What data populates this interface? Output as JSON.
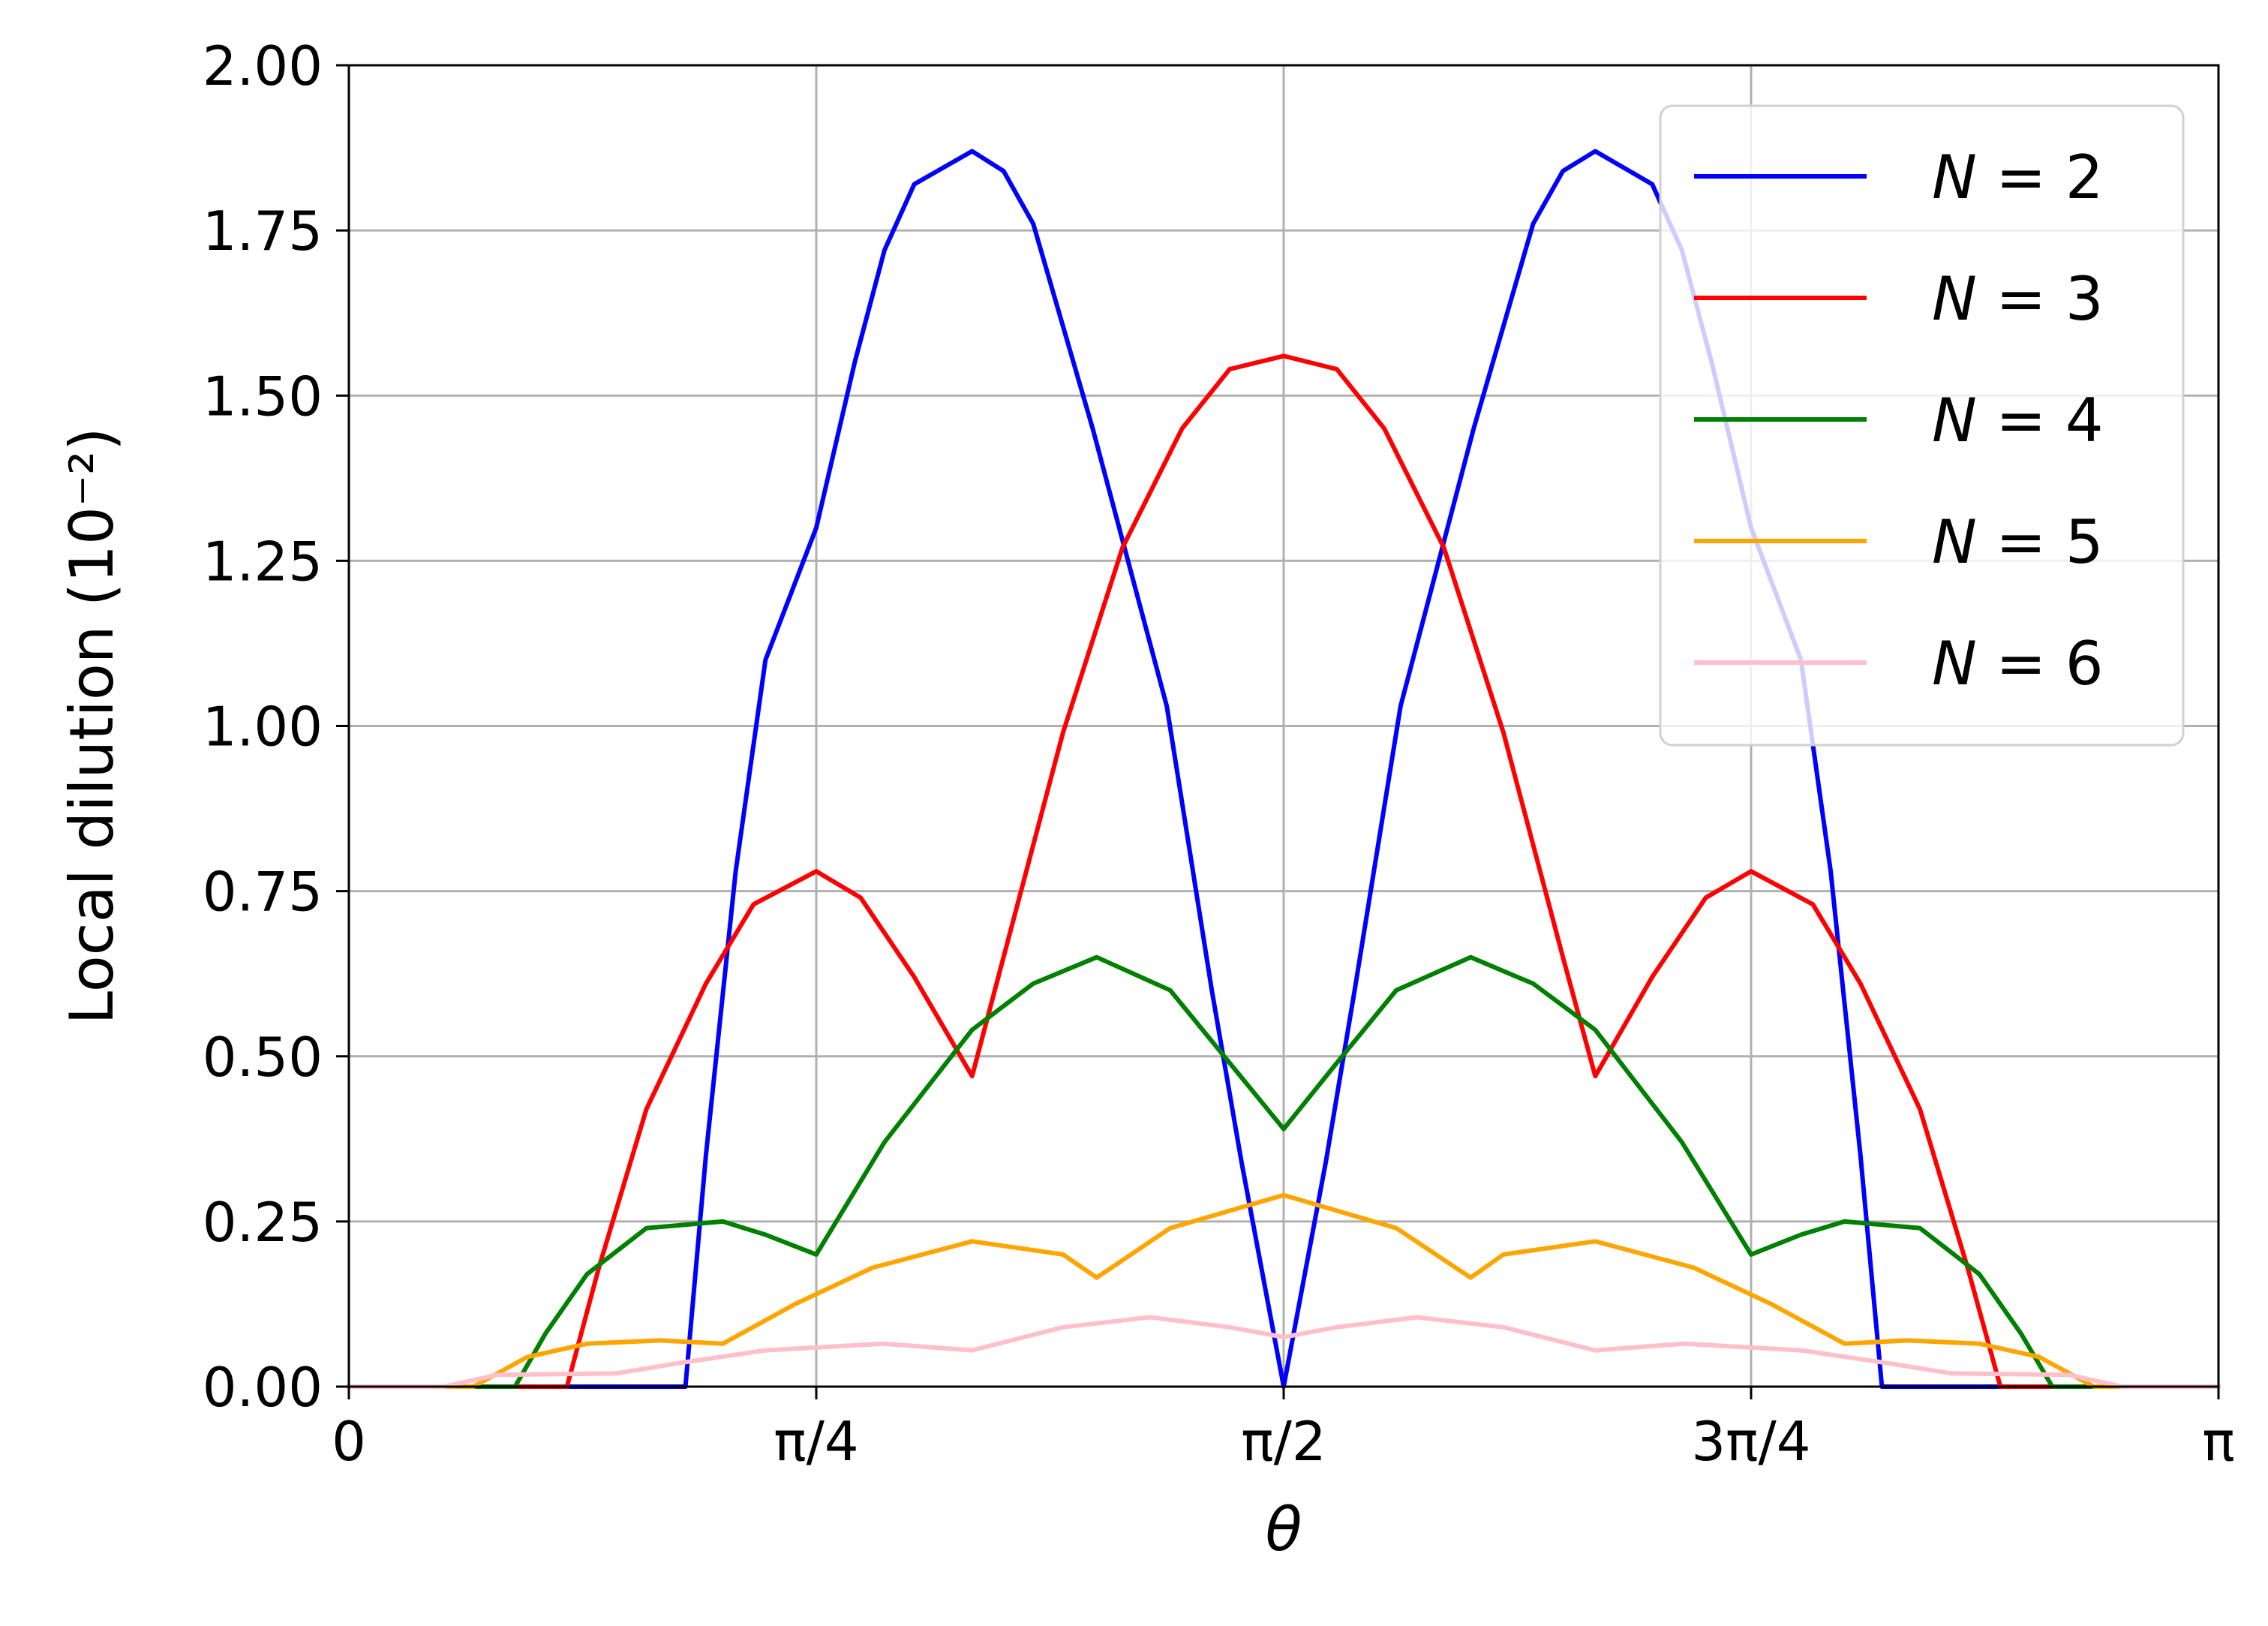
{
  "chart_data": {
    "type": "line",
    "xlabel": "θ",
    "ylabel": "Local dilution (10⁻²)",
    "xlim": [
      0,
      3.14159265
    ],
    "ylim": [
      0,
      2.0
    ],
    "grid": true,
    "legend_position": "top-right",
    "x_ticks": [
      {
        "value": 0,
        "label": "0"
      },
      {
        "value": 0.78539816,
        "label": "π/4"
      },
      {
        "value": 1.57079633,
        "label": "π/2"
      },
      {
        "value": 2.35619449,
        "label": "3π/4"
      },
      {
        "value": 3.14159265,
        "label": "π"
      }
    ],
    "y_ticks": [
      {
        "value": 0,
        "label": "0.00"
      },
      {
        "value": 0.25,
        "label": "0.25"
      },
      {
        "value": 0.5,
        "label": "0.50"
      },
      {
        "value": 0.75,
        "label": "0.75"
      },
      {
        "value": 1.0,
        "label": "1.00"
      },
      {
        "value": 1.25,
        "label": "1.25"
      },
      {
        "value": 1.5,
        "label": "1.50"
      },
      {
        "value": 1.75,
        "label": "1.75"
      },
      {
        "value": 2.0,
        "label": "2.00"
      }
    ],
    "series": [
      {
        "name": "N = 2",
        "label_var": "N",
        "label_value": "2",
        "color": "#0000ff",
        "points": [
          [
            0,
            0
          ],
          [
            0.5655,
            0
          ],
          [
            0.6,
            0.35
          ],
          [
            0.65,
            0.78
          ],
          [
            0.7,
            1.1
          ],
          [
            0.7854,
            1.3
          ],
          [
            0.85,
            1.55
          ],
          [
            0.9,
            1.72
          ],
          [
            0.95,
            1.82
          ],
          [
            1.0472,
            1.87
          ],
          [
            1.1,
            1.84
          ],
          [
            1.15,
            1.76
          ],
          [
            1.25,
            1.45
          ],
          [
            1.3744,
            1.03
          ],
          [
            1.45,
            0.6
          ],
          [
            1.5,
            0.34
          ],
          [
            1.5708,
            0
          ],
          [
            1.6416,
            0.34
          ],
          [
            1.69,
            0.6
          ],
          [
            1.7672,
            1.03
          ],
          [
            1.89,
            1.45
          ],
          [
            1.99,
            1.76
          ],
          [
            2.04,
            1.84
          ],
          [
            2.0944,
            1.87
          ],
          [
            2.19,
            1.82
          ],
          [
            2.24,
            1.72
          ],
          [
            2.29,
            1.55
          ],
          [
            2.3562,
            1.3
          ],
          [
            2.44,
            1.1
          ],
          [
            2.49,
            0.78
          ],
          [
            2.54,
            0.35
          ],
          [
            2.5761,
            0
          ],
          [
            3.1416,
            0
          ]
        ]
      },
      {
        "name": "N = 3",
        "label_var": "N",
        "label_value": "3",
        "color": "#ff0000",
        "points": [
          [
            0,
            0
          ],
          [
            0.3665,
            0
          ],
          [
            0.42,
            0.18
          ],
          [
            0.5,
            0.42
          ],
          [
            0.6,
            0.61
          ],
          [
            0.68,
            0.73
          ],
          [
            0.7854,
            0.78
          ],
          [
            0.86,
            0.74
          ],
          [
            0.95,
            0.62
          ],
          [
            1.0472,
            0.47
          ],
          [
            1.1,
            0.65
          ],
          [
            1.2,
            0.99
          ],
          [
            1.3,
            1.27
          ],
          [
            1.4,
            1.45
          ],
          [
            1.48,
            1.54
          ],
          [
            1.5708,
            1.56
          ],
          [
            1.66,
            1.54
          ],
          [
            1.74,
            1.45
          ],
          [
            1.84,
            1.27
          ],
          [
            1.94,
            0.99
          ],
          [
            2.04,
            0.65
          ],
          [
            2.0944,
            0.47
          ],
          [
            2.19,
            0.62
          ],
          [
            2.28,
            0.74
          ],
          [
            2.3562,
            0.78
          ],
          [
            2.46,
            0.73
          ],
          [
            2.54,
            0.61
          ],
          [
            2.64,
            0.42
          ],
          [
            2.72,
            0.18
          ],
          [
            2.7751,
            0
          ],
          [
            3.1416,
            0
          ]
        ]
      },
      {
        "name": "N = 4",
        "label_var": "N",
        "label_value": "4",
        "color": "#008000",
        "points": [
          [
            0,
            0
          ],
          [
            0.2793,
            0
          ],
          [
            0.33,
            0.08
          ],
          [
            0.4,
            0.17
          ],
          [
            0.5,
            0.24
          ],
          [
            0.6283,
            0.25
          ],
          [
            0.7,
            0.23
          ],
          [
            0.7854,
            0.2
          ],
          [
            0.9,
            0.37
          ],
          [
            1.0472,
            0.54
          ],
          [
            1.15,
            0.61
          ],
          [
            1.2566,
            0.65
          ],
          [
            1.38,
            0.6
          ],
          [
            1.48,
            0.49
          ],
          [
            1.5708,
            0.39
          ],
          [
            1.66,
            0.49
          ],
          [
            1.76,
            0.6
          ],
          [
            1.885,
            0.65
          ],
          [
            1.99,
            0.61
          ],
          [
            2.0944,
            0.54
          ],
          [
            2.24,
            0.37
          ],
          [
            2.3562,
            0.2
          ],
          [
            2.44,
            0.23
          ],
          [
            2.5133,
            0.25
          ],
          [
            2.64,
            0.24
          ],
          [
            2.74,
            0.17
          ],
          [
            2.81,
            0.08
          ],
          [
            2.8623,
            0
          ],
          [
            3.1416,
            0
          ]
        ]
      },
      {
        "name": "N = 5",
        "label_var": "N",
        "label_value": "5",
        "color": "#ffa500",
        "points": [
          [
            0,
            0
          ],
          [
            0.2094,
            0
          ],
          [
            0.3,
            0.045
          ],
          [
            0.4,
            0.065
          ],
          [
            0.5236,
            0.07
          ],
          [
            0.6283,
            0.065
          ],
          [
            0.75,
            0.125
          ],
          [
            0.88,
            0.18
          ],
          [
            1.0472,
            0.22
          ],
          [
            1.2,
            0.2
          ],
          [
            1.2566,
            0.165
          ],
          [
            1.38,
            0.24
          ],
          [
            1.5708,
            0.29
          ],
          [
            1.76,
            0.24
          ],
          [
            1.885,
            0.165
          ],
          [
            1.94,
            0.2
          ],
          [
            2.0944,
            0.22
          ],
          [
            2.26,
            0.18
          ],
          [
            2.39,
            0.125
          ],
          [
            2.5133,
            0.065
          ],
          [
            2.618,
            0.07
          ],
          [
            2.74,
            0.065
          ],
          [
            2.84,
            0.045
          ],
          [
            2.9322,
            0
          ],
          [
            3.1416,
            0
          ]
        ]
      },
      {
        "name": "N = 6",
        "label_var": "N",
        "label_value": "6",
        "color": "#ffc0cb",
        "points": [
          [
            0,
            0
          ],
          [
            0.16,
            0
          ],
          [
            0.25,
            0.018
          ],
          [
            0.4488,
            0.02
          ],
          [
            0.55,
            0.035
          ],
          [
            0.7,
            0.055
          ],
          [
            0.8976,
            0.065
          ],
          [
            1.0472,
            0.055
          ],
          [
            1.2,
            0.09
          ],
          [
            1.3464,
            0.105
          ],
          [
            1.48,
            0.09
          ],
          [
            1.5708,
            0.075
          ],
          [
            1.66,
            0.09
          ],
          [
            1.7952,
            0.105
          ],
          [
            1.94,
            0.09
          ],
          [
            2.0944,
            0.055
          ],
          [
            2.244,
            0.065
          ],
          [
            2.44,
            0.055
          ],
          [
            2.59,
            0.035
          ],
          [
            2.6928,
            0.02
          ],
          [
            2.89,
            0.018
          ],
          [
            2.98,
            0
          ],
          [
            3.1416,
            0
          ]
        ]
      }
    ]
  }
}
